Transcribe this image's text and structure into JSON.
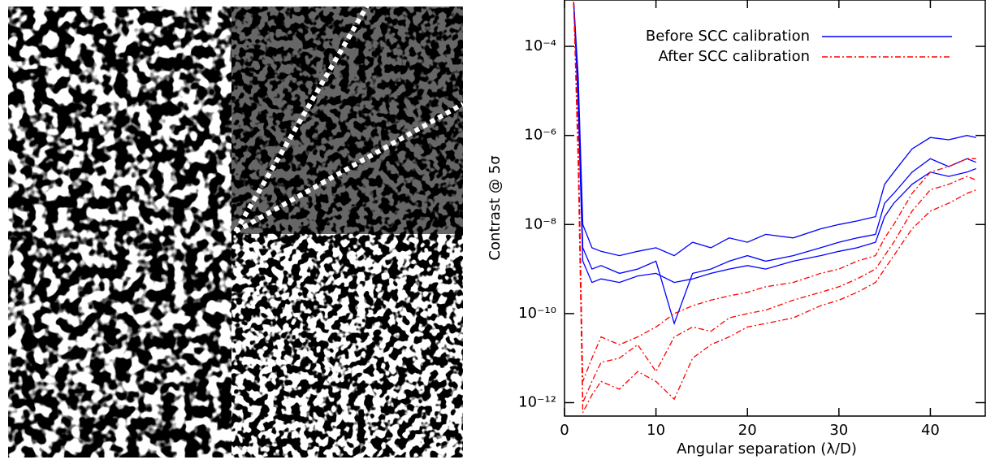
{
  "chart_data": {
    "type": "line",
    "yscale": "log",
    "xlabel": "Angular separation (λ/D)",
    "ylabel": "Contrast @ 5σ",
    "x": [
      1,
      1.5,
      2,
      3,
      4,
      6,
      8,
      10,
      12,
      14,
      16,
      18,
      20,
      22,
      25,
      28,
      30,
      32,
      34,
      35,
      36,
      38,
      40,
      42,
      44,
      45
    ],
    "xlim": [
      0,
      46
    ],
    "xticks": [
      0,
      10,
      20,
      30,
      40
    ],
    "ylim": [
      5e-13,
      0.0011
    ],
    "yticks": [
      {
        "value": 0.0001,
        "label": "10⁻⁴"
      },
      {
        "value": 1e-06,
        "label": "10⁻⁶"
      },
      {
        "value": 1e-08,
        "label": "10⁻⁸"
      },
      {
        "value": 1e-10,
        "label": "10⁻¹⁰"
      },
      {
        "value": 1e-12,
        "label": "10⁻¹²"
      }
    ],
    "legend": "upper right",
    "series": [
      {
        "name": "Before SCC calibration",
        "color": "#0000ff",
        "dash": "solid",
        "values": [
          0.001,
          2e-05,
          1e-08,
          3e-09,
          2.5e-09,
          2e-09,
          2.5e-09,
          3e-09,
          2e-09,
          4e-09,
          3e-09,
          5e-09,
          4e-09,
          6e-09,
          5e-09,
          8e-09,
          1e-08,
          1.2e-08,
          1.5e-08,
          8e-08,
          1.5e-07,
          5e-07,
          9e-07,
          8e-07,
          1e-06,
          9e-07
        ]
      },
      {
        "color": "#0000ff",
        "dash": "solid",
        "values": [
          0.001,
          1e-05,
          3e-09,
          1e-09,
          1.2e-09,
          8e-10,
          1e-09,
          1.5e-09,
          6e-11,
          8e-10,
          1e-09,
          1.5e-09,
          2e-09,
          1.5e-09,
          2e-09,
          3e-09,
          4e-09,
          5e-09,
          6e-09,
          3e-08,
          5e-08,
          1.5e-07,
          3e-07,
          2e-07,
          3e-07,
          2.5e-07
        ]
      },
      {
        "color": "#0000ff",
        "dash": "solid",
        "values": [
          0.001,
          5e-06,
          1.5e-09,
          5e-10,
          6e-10,
          5e-10,
          7e-10,
          8e-10,
          5e-10,
          6e-10,
          8e-10,
          1e-09,
          1.2e-09,
          1e-09,
          1.5e-09,
          2e-09,
          2.5e-09,
          3e-09,
          4e-09,
          1.5e-08,
          3e-08,
          8e-08,
          1.5e-07,
          1.2e-07,
          1.5e-07,
          1.8e-07
        ]
      },
      {
        "name": "After SCC calibration",
        "color": "#ff0000",
        "dash": "dashdot",
        "values": [
          0.001,
          1e-06,
          3e-12,
          1e-11,
          3e-11,
          2e-11,
          3e-11,
          5e-11,
          1e-10,
          1.5e-10,
          2e-10,
          2.5e-10,
          3e-10,
          4e-10,
          5e-10,
          8e-10,
          1e-09,
          1.5e-09,
          2e-09,
          5e-09,
          1e-08,
          5e-08,
          1.5e-07,
          2e-07,
          3e-07,
          3e-07
        ]
      },
      {
        "color": "#ff0000",
        "dash": "dashdot",
        "values": [
          0.001,
          5e-07,
          1e-12,
          3e-12,
          8e-12,
          1e-11,
          2e-11,
          5e-12,
          3e-11,
          5e-11,
          4e-11,
          8e-11,
          1e-10,
          1.2e-10,
          2e-10,
          3e-10,
          4e-10,
          6e-10,
          1e-09,
          2e-09,
          4e-09,
          2e-08,
          6e-08,
          8e-08,
          1.2e-07,
          1e-07
        ]
      },
      {
        "color": "#ff0000",
        "dash": "dashdot",
        "values": [
          0.001,
          2e-07,
          6e-13,
          1.5e-12,
          3e-12,
          2e-12,
          5e-12,
          3e-12,
          1.2e-12,
          1e-11,
          2e-11,
          3e-11,
          5e-11,
          6e-11,
          8e-11,
          1.5e-10,
          2e-10,
          3e-10,
          5e-10,
          1e-09,
          2e-09,
          8e-09,
          2e-08,
          3e-08,
          5e-08,
          6e-08
        ]
      }
    ]
  }
}
